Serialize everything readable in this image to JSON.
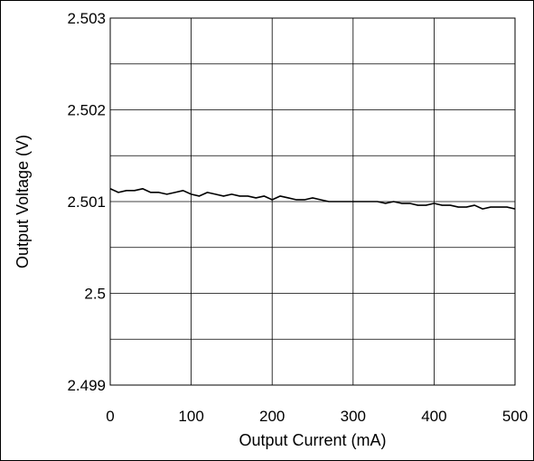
{
  "chart_data": {
    "type": "line",
    "title": "",
    "xlabel": "Output Current (mA)",
    "ylabel": "Output Voltage (V)",
    "xlim": [
      0,
      500
    ],
    "ylim": [
      2.499,
      2.503
    ],
    "xticks": [
      0,
      100,
      200,
      300,
      400,
      500
    ],
    "xtick_labels": [
      "0",
      "100",
      "200",
      "300",
      "400",
      "500"
    ],
    "yticks": [
      2.499,
      2.5,
      2.501,
      2.502,
      2.503
    ],
    "ytick_labels": [
      "2.499",
      "2.5",
      "2.501",
      "2.502",
      "2.503"
    ],
    "grid": true,
    "legend": "none",
    "series": [
      {
        "color": "#000000",
        "x": [
          0,
          10,
          20,
          30,
          40,
          50,
          60,
          70,
          80,
          90,
          100,
          110,
          120,
          130,
          140,
          150,
          160,
          170,
          180,
          190,
          200,
          210,
          220,
          230,
          240,
          250,
          260,
          270,
          280,
          290,
          300,
          310,
          320,
          330,
          340,
          350,
          360,
          370,
          380,
          390,
          400,
          410,
          420,
          430,
          440,
          450,
          460,
          470,
          480,
          490,
          500
        ],
        "y": [
          2.50114,
          2.5011,
          2.50112,
          2.50112,
          2.50114,
          2.5011,
          2.5011,
          2.50108,
          2.5011,
          2.50112,
          2.50108,
          2.50106,
          2.5011,
          2.50108,
          2.50106,
          2.50108,
          2.50106,
          2.50106,
          2.50104,
          2.50106,
          2.50102,
          2.50106,
          2.50104,
          2.50102,
          2.50102,
          2.50104,
          2.50102,
          2.501,
          2.501,
          2.501,
          2.501,
          2.501,
          2.501,
          2.501,
          2.50098,
          2.501,
          2.50098,
          2.50098,
          2.50096,
          2.50096,
          2.50098,
          2.50096,
          2.50096,
          2.50094,
          2.50094,
          2.50096,
          2.50092,
          2.50094,
          2.50094,
          2.50094,
          2.50092
        ]
      }
    ]
  }
}
